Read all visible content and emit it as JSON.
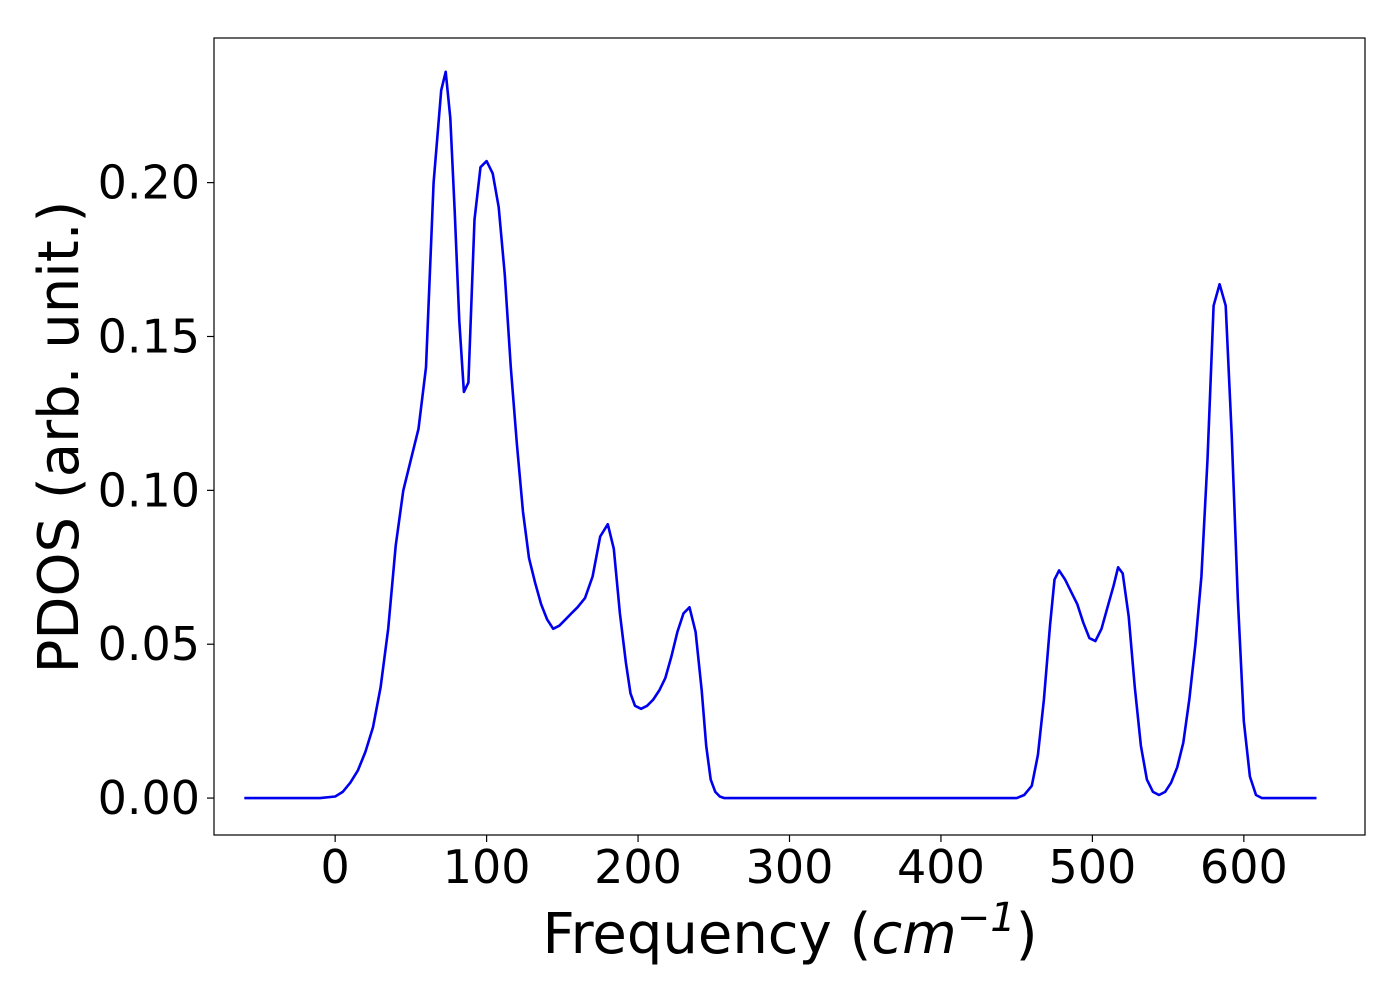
{
  "chart_data": {
    "type": "line",
    "xlabel": "Frequency (cm⁻¹)",
    "xlabel_parts": {
      "prefix": "Frequency (",
      "unit": "cm",
      "exponent": "−1",
      "suffix": ")"
    },
    "ylabel": "PDOS (arb. unit.)",
    "xlim": [
      -80,
      680
    ],
    "ylim": [
      -0.012,
      0.247
    ],
    "x_ticks": [
      {
        "value": 0,
        "label": "0"
      },
      {
        "value": 100,
        "label": "100"
      },
      {
        "value": 200,
        "label": "200"
      },
      {
        "value": 300,
        "label": "300"
      },
      {
        "value": 400,
        "label": "400"
      },
      {
        "value": 500,
        "label": "500"
      },
      {
        "value": 600,
        "label": "600"
      }
    ],
    "y_ticks": [
      {
        "value": 0.0,
        "label": "0.00"
      },
      {
        "value": 0.05,
        "label": "0.05"
      },
      {
        "value": 0.1,
        "label": "0.10"
      },
      {
        "value": 0.15,
        "label": "0.15"
      },
      {
        "value": 0.2,
        "label": "0.20"
      }
    ],
    "grid": false,
    "legend": null,
    "series": [
      {
        "color": "#0000ee",
        "x": [
          -60,
          -10,
          0,
          5,
          10,
          15,
          20,
          25,
          30,
          35,
          40,
          45,
          50,
          55,
          60,
          65,
          70,
          73,
          76,
          79,
          82,
          85,
          88,
          92,
          96,
          100,
          104,
          108,
          112,
          116,
          120,
          124,
          128,
          132,
          136,
          140,
          144,
          148,
          152,
          156,
          160,
          165,
          170,
          175,
          180,
          184,
          188,
          192,
          195,
          198,
          202,
          206,
          210,
          214,
          218,
          222,
          226,
          230,
          234,
          238,
          242,
          245,
          248,
          251,
          254,
          257,
          260,
          264,
          268,
          275,
          300,
          400,
          450,
          455,
          460,
          464,
          468,
          472,
          475,
          478,
          482,
          486,
          490,
          494,
          498,
          502,
          506,
          510,
          514,
          517,
          520,
          524,
          528,
          532,
          536,
          540,
          544,
          548,
          552,
          556,
          560,
          564,
          568,
          572,
          576,
          580,
          584,
          588,
          592,
          596,
          600,
          604,
          608,
          612,
          620,
          648
        ],
        "y": [
          0.0,
          0.0,
          0.0005,
          0.002,
          0.005,
          0.009,
          0.015,
          0.023,
          0.036,
          0.055,
          0.082,
          0.1,
          0.11,
          0.12,
          0.14,
          0.2,
          0.23,
          0.236,
          0.221,
          0.19,
          0.155,
          0.132,
          0.135,
          0.188,
          0.205,
          0.207,
          0.203,
          0.192,
          0.17,
          0.14,
          0.115,
          0.093,
          0.078,
          0.07,
          0.063,
          0.058,
          0.055,
          0.056,
          0.058,
          0.06,
          0.062,
          0.065,
          0.072,
          0.085,
          0.089,
          0.081,
          0.06,
          0.044,
          0.034,
          0.03,
          0.029,
          0.03,
          0.032,
          0.035,
          0.039,
          0.046,
          0.054,
          0.06,
          0.062,
          0.054,
          0.035,
          0.017,
          0.006,
          0.002,
          0.0005,
          0.0,
          0.0,
          0.0,
          0.0,
          0.0,
          0.0,
          0.0,
          0.0,
          0.001,
          0.004,
          0.014,
          0.032,
          0.056,
          0.071,
          0.074,
          0.071,
          0.067,
          0.063,
          0.057,
          0.052,
          0.051,
          0.055,
          0.062,
          0.069,
          0.075,
          0.073,
          0.059,
          0.036,
          0.017,
          0.006,
          0.002,
          0.001,
          0.002,
          0.005,
          0.01,
          0.018,
          0.032,
          0.05,
          0.072,
          0.11,
          0.16,
          0.167,
          0.16,
          0.118,
          0.065,
          0.025,
          0.007,
          0.001,
          0.0,
          0.0,
          0.0
        ]
      }
    ]
  }
}
